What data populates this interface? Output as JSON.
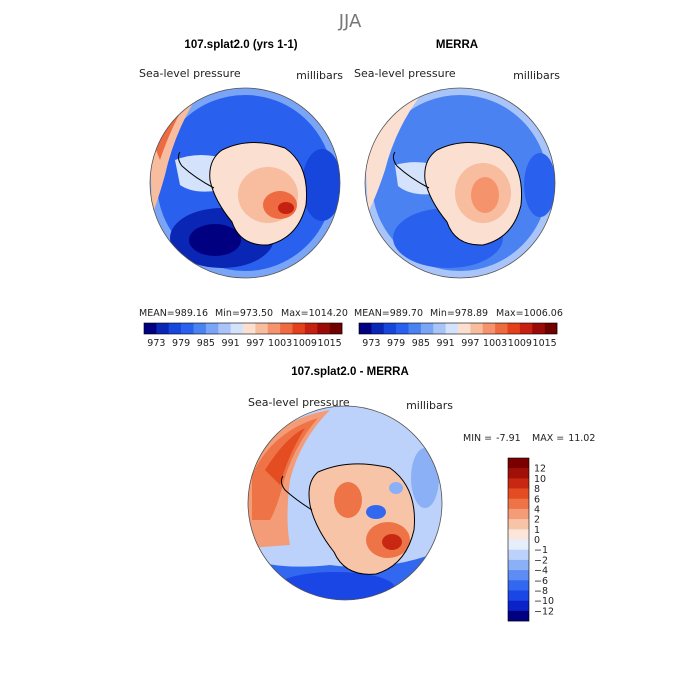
{
  "page_title": "JJA",
  "chart_data": [
    {
      "type": "heatmap",
      "panel": "model",
      "title": "107.splat2.0 (yrs 1-1)",
      "left_label": "Sea-level pressure",
      "right_label": "millibars",
      "projection": "south polar stereographic",
      "stats": {
        "mean_label": "MEAN=",
        "mean": "989.16",
        "min_label": "Min=",
        "min": "973.50",
        "max_label": "Max=",
        "max": "1014.20"
      },
      "levels": [
        973,
        976,
        979,
        982,
        985,
        988,
        991,
        994,
        997,
        1000,
        1003,
        1006,
        1009,
        1012,
        1015
      ],
      "tick_labels": [
        "973",
        "979",
        "985",
        "991",
        "997",
        "1003",
        "1009",
        "1015"
      ],
      "colors": [
        "#000080",
        "#0a26b4",
        "#1646dc",
        "#2a60ee",
        "#4a82f2",
        "#7aa4f5",
        "#a8c4f8",
        "#d4e2fb",
        "#fbe0d2",
        "#f8bc9f",
        "#f5946c",
        "#ee6a40",
        "#e3401c",
        "#c52010",
        "#9a0a08",
        "#700000"
      ]
    },
    {
      "type": "heatmap",
      "panel": "obs",
      "title": "MERRA",
      "left_label": "Sea-level pressure",
      "right_label": "millibars",
      "projection": "south polar stereographic",
      "stats": {
        "mean_label": "MEAN=",
        "mean": "989.70",
        "min_label": "Min=",
        "min": "978.89",
        "max_label": "Max=",
        "max": "1006.06"
      },
      "levels": [
        973,
        976,
        979,
        982,
        985,
        988,
        991,
        994,
        997,
        1000,
        1003,
        1006,
        1009,
        1012,
        1015
      ],
      "tick_labels": [
        "973",
        "979",
        "985",
        "991",
        "997",
        "1003",
        "1009",
        "1015"
      ],
      "colors": [
        "#000080",
        "#0a26b4",
        "#1646dc",
        "#2a60ee",
        "#4a82f2",
        "#7aa4f5",
        "#a8c4f8",
        "#d4e2fb",
        "#fbe0d2",
        "#f8bc9f",
        "#f5946c",
        "#ee6a40",
        "#e3401c",
        "#c52010",
        "#9a0a08",
        "#700000"
      ]
    },
    {
      "type": "heatmap",
      "panel": "difference",
      "title": "107.splat2.0 - MERRA",
      "left_label": "Sea-level pressure",
      "right_label": "millibars",
      "projection": "south polar stereographic",
      "stats": {
        "min_label": "MIN =",
        "min": "-7.91",
        "max_label": "MAX =",
        "max": "11.02"
      },
      "levels": [
        -12,
        -10,
        -8,
        -6,
        -4,
        -2,
        -1,
        0,
        1,
        2,
        4,
        6,
        8,
        10,
        12
      ],
      "tick_labels": [
        "12",
        "10",
        "8",
        "6",
        "4",
        "2",
        "1",
        "0",
        "−1",
        "−2",
        "−4",
        "−6",
        "−8",
        "−10",
        "−12"
      ],
      "colors": [
        "#000080",
        "#0a22c8",
        "#1a46e6",
        "#3268f0",
        "#5c8cf4",
        "#8cb0f6",
        "#bcd2fa",
        "#e6eefc",
        "#fce6dc",
        "#f8c4a8",
        "#f49c78",
        "#ee7448",
        "#e44c22",
        "#c82812",
        "#a01008",
        "#7a0000"
      ]
    }
  ]
}
